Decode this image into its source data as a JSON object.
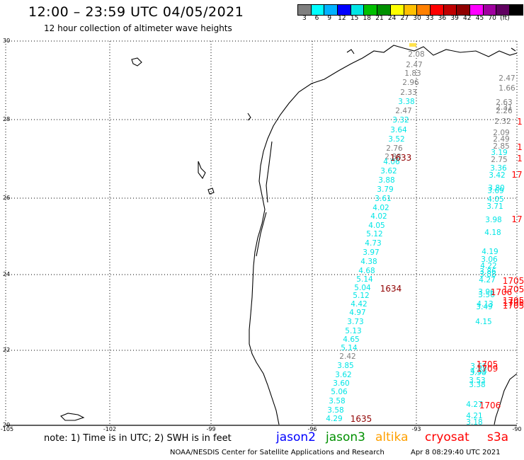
{
  "header": {
    "title": "12:00 – 23:59 UTC 04/05/2021",
    "subtitle": "12 hour collection of altimeter wave heights"
  },
  "colorbar": {
    "colors": [
      "#7f7f7f",
      "#00ffff",
      "#00b2ff",
      "#0000ff",
      "#00e5e5",
      "#00c000",
      "#009000",
      "#ffff00",
      "#ffc000",
      "#ff8000",
      "#ff0000",
      "#c00000",
      "#900000",
      "#ff00ff",
      "#a000a0",
      "#600060",
      "#000000"
    ],
    "ticks": [
      "3",
      "6",
      "9",
      "12",
      "15",
      "18",
      "21",
      "24",
      "27",
      "30",
      "33",
      "36",
      "39",
      "42",
      "45",
      "70",
      "(ft)"
    ]
  },
  "axes": {
    "lon_labels": [
      "-105",
      "-102",
      "-99",
      "-96",
      "-93",
      "-90"
    ],
    "lat_labels": [
      "30",
      "28",
      "26",
      "24",
      "22",
      "20"
    ]
  },
  "measurements": [
    {
      "v": "2.08",
      "c": "#7f7f7f"
    },
    {
      "v": "2.47",
      "c": "#7f7f7f"
    },
    {
      "v": "1.83",
      "c": "#7f7f7f"
    },
    {
      "v": "2.96",
      "c": "#7f7f7f"
    },
    {
      "v": "2.33",
      "c": "#7f7f7f"
    },
    {
      "v": "3.38",
      "c": "#00e5e5"
    },
    {
      "v": "2.47",
      "c": "#7f7f7f"
    },
    {
      "v": "3.32",
      "c": "#00e5e5"
    },
    {
      "v": "3.64",
      "c": "#00e5e5"
    },
    {
      "v": "3.52",
      "c": "#00e5e5"
    },
    {
      "v": "2.76",
      "c": "#7f7f7f"
    },
    {
      "v": "2.88",
      "c": "#7f7f7f"
    },
    {
      "v": "4.06",
      "c": "#00e5e5"
    },
    {
      "v": "3.62",
      "c": "#00e5e5"
    },
    {
      "v": "3.88",
      "c": "#00e5e5"
    },
    {
      "v": "3.79",
      "c": "#00e5e5"
    },
    {
      "v": "3.61",
      "c": "#00e5e5"
    },
    {
      "v": "4.02",
      "c": "#00e5e5"
    },
    {
      "v": "4.02",
      "c": "#00e5e5"
    },
    {
      "v": "4.05",
      "c": "#00e5e5"
    },
    {
      "v": "5.12",
      "c": "#00e5e5"
    },
    {
      "v": "4.73",
      "c": "#00e5e5"
    },
    {
      "v": "3.97",
      "c": "#00e5e5"
    },
    {
      "v": "4.38",
      "c": "#00e5e5"
    },
    {
      "v": "4.68",
      "c": "#00e5e5"
    },
    {
      "v": "5.14",
      "c": "#00e5e5"
    },
    {
      "v": "5.04",
      "c": "#00e5e5"
    },
    {
      "v": "5.12",
      "c": "#00e5e5"
    },
    {
      "v": "4.42",
      "c": "#00e5e5"
    },
    {
      "v": "4.97",
      "c": "#00e5e5"
    },
    {
      "v": "3.73",
      "c": "#00e5e5"
    },
    {
      "v": "5.13",
      "c": "#00e5e5"
    },
    {
      "v": "4.65",
      "c": "#00e5e5"
    },
    {
      "v": "5.14",
      "c": "#00e5e5"
    },
    {
      "v": "2.42",
      "c": "#7f7f7f"
    },
    {
      "v": "3.85",
      "c": "#00e5e5"
    },
    {
      "v": "3.62",
      "c": "#00e5e5"
    },
    {
      "v": "3.60",
      "c": "#00e5e5"
    },
    {
      "v": "5.06",
      "c": "#00e5e5"
    },
    {
      "v": "3.58",
      "c": "#00e5e5"
    },
    {
      "v": "3.58",
      "c": "#00e5e5"
    },
    {
      "v": "4.29",
      "c": "#00e5e5"
    },
    {
      "v": "2.47",
      "c": "#7f7f7f"
    },
    {
      "v": "1.66",
      "c": "#7f7f7f"
    },
    {
      "v": "2.63",
      "c": "#7f7f7f"
    },
    {
      "v": "2.31",
      "c": "#7f7f7f"
    },
    {
      "v": "2.26",
      "c": "#7f7f7f"
    },
    {
      "v": "2.32",
      "c": "#7f7f7f"
    },
    {
      "v": "2.09",
      "c": "#7f7f7f"
    },
    {
      "v": "2.49",
      "c": "#7f7f7f"
    },
    {
      "v": "2.85",
      "c": "#7f7f7f"
    },
    {
      "v": "3.19",
      "c": "#00e5e5"
    },
    {
      "v": "2.75",
      "c": "#7f7f7f"
    },
    {
      "v": "3.36",
      "c": "#00e5e5"
    },
    {
      "v": "3.42",
      "c": "#00e5e5"
    },
    {
      "v": "3.80",
      "c": "#00e5e5"
    },
    {
      "v": "3.69",
      "c": "#00e5e5"
    },
    {
      "v": "4.05",
      "c": "#00e5e5"
    },
    {
      "v": "3.71",
      "c": "#00e5e5"
    },
    {
      "v": "3.98",
      "c": "#00e5e5"
    },
    {
      "v": "4.18",
      "c": "#00e5e5"
    },
    {
      "v": "4.19",
      "c": "#00e5e5"
    },
    {
      "v": "3.06",
      "c": "#00e5e5"
    },
    {
      "v": "4.22",
      "c": "#00e5e5"
    },
    {
      "v": "3.86",
      "c": "#00e5e5"
    },
    {
      "v": "3.88",
      "c": "#00e5e5"
    },
    {
      "v": "4.27",
      "c": "#00e5e5"
    },
    {
      "v": "3.96",
      "c": "#00e5e5"
    },
    {
      "v": "3.56",
      "c": "#00e5e5"
    },
    {
      "v": "4.13",
      "c": "#00e5e5"
    },
    {
      "v": "3.49",
      "c": "#00e5e5"
    },
    {
      "v": "4.15",
      "c": "#00e5e5"
    },
    {
      "v": "3.66",
      "c": "#00e5e5"
    },
    {
      "v": "4.33",
      "c": "#00e5e5"
    },
    {
      "v": "3.98",
      "c": "#00e5e5"
    },
    {
      "v": "3.53",
      "c": "#00e5e5"
    },
    {
      "v": "3.38",
      "c": "#00e5e5"
    },
    {
      "v": "4.27",
      "c": "#00e5e5"
    },
    {
      "v": "4.21",
      "c": "#00e5e5"
    },
    {
      "v": "3.18",
      "c": "#00e5e5"
    }
  ],
  "pass_times": [
    {
      "t": "1633",
      "c": "#900000"
    },
    {
      "t": "1634",
      "c": "#900000"
    },
    {
      "t": "1635",
      "c": "#900000"
    },
    {
      "t": "1705",
      "c": "#ff0000"
    },
    {
      "t": "1705",
      "c": "#ff0000"
    },
    {
      "t": "1705",
      "c": "#ff0000"
    },
    {
      "t": "1706",
      "c": "#ff0000"
    },
    {
      "t": "1705",
      "c": "#ff0000"
    },
    {
      "t": "1705",
      "c": "#ff0000"
    },
    {
      "t": "1705",
      "c": "#ff0000"
    },
    {
      "t": "1709",
      "c": "#ff0000"
    },
    {
      "t": "1706",
      "c": "#ff0000"
    },
    {
      "t": "1",
      "c": "#ff0000"
    },
    {
      "t": "1",
      "c": "#ff0000"
    },
    {
      "t": "1",
      "c": "#ff0000"
    },
    {
      "t": "17",
      "c": "#ff0000"
    },
    {
      "t": "17",
      "c": "#ff0000"
    }
  ],
  "footer": {
    "note": "note:  1) Time is in UTC;  2) SWH is in feet",
    "satellites": [
      {
        "name": "jason2",
        "color": "#0000ff"
      },
      {
        "name": "jason3",
        "color": "#009000"
      },
      {
        "name": "altika",
        "color": "#ffa000"
      },
      {
        "name": "cryosat",
        "color": "#ff0000"
      },
      {
        "name": "s3a",
        "color": "#ff0000"
      }
    ],
    "credit": "NOAA/NESDIS Center for Satellite Applications and Research",
    "timestamp": "Apr  8 08:29:40 UTC 2021"
  }
}
